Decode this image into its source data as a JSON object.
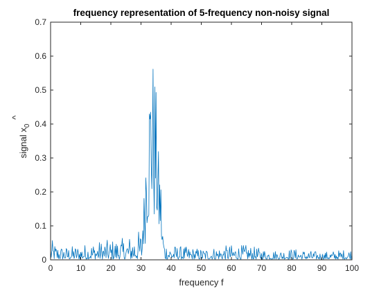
{
  "chart_data": {
    "type": "line",
    "title": "frequency representation of 5-frequency non-noisy signal",
    "xlabel": "frequency f",
    "ylabel": "signal x",
    "ylabel_subscript": "0",
    "ylabel_hat": "^",
    "xlim": [
      0,
      100
    ],
    "ylim": [
      0,
      0.7
    ],
    "xticks": [
      "0",
      "10",
      "20",
      "30",
      "40",
      "50",
      "60",
      "70",
      "80",
      "90",
      "100"
    ],
    "yticks": [
      "0",
      "0.1",
      "0.2",
      "0.3",
      "0.4",
      "0.5",
      "0.6",
      "0.7"
    ],
    "grid": false,
    "line_color": "#0072bd",
    "sample_step": 0.2,
    "series": [
      {
        "x_start": 0,
        "x_end": 100,
        "envelope": [
          {
            "x": 0,
            "y": 0.058
          },
          {
            "x": 2,
            "y": 0.04
          },
          {
            "x": 5,
            "y": 0.035
          },
          {
            "x": 10,
            "y": 0.04
          },
          {
            "x": 15,
            "y": 0.05
          },
          {
            "x": 20,
            "y": 0.055
          },
          {
            "x": 25,
            "y": 0.06
          },
          {
            "x": 28,
            "y": 0.075
          },
          {
            "x": 30,
            "y": 0.085
          },
          {
            "x": 31,
            "y": 0.2
          },
          {
            "x": 32,
            "y": 0.47
          },
          {
            "x": 33,
            "y": 0.55
          },
          {
            "x": 33.5,
            "y": 0.63
          },
          {
            "x": 34,
            "y": 0.6
          },
          {
            "x": 34.5,
            "y": 0.58
          },
          {
            "x": 35,
            "y": 0.5
          },
          {
            "x": 35.5,
            "y": 0.38
          },
          {
            "x": 36,
            "y": 0.29
          },
          {
            "x": 36.5,
            "y": 0.28
          },
          {
            "x": 37,
            "y": 0.1
          },
          {
            "x": 38,
            "y": 0.05
          },
          {
            "x": 40,
            "y": 0.04
          },
          {
            "x": 45,
            "y": 0.035
          },
          {
            "x": 50,
            "y": 0.03
          },
          {
            "x": 55,
            "y": 0.035
          },
          {
            "x": 60,
            "y": 0.04
          },
          {
            "x": 65,
            "y": 0.04
          },
          {
            "x": 70,
            "y": 0.03
          },
          {
            "x": 75,
            "y": 0.025
          },
          {
            "x": 80,
            "y": 0.03
          },
          {
            "x": 85,
            "y": 0.025
          },
          {
            "x": 90,
            "y": 0.02
          },
          {
            "x": 95,
            "y": 0.025
          },
          {
            "x": 100,
            "y": 0.03
          }
        ]
      }
    ]
  }
}
